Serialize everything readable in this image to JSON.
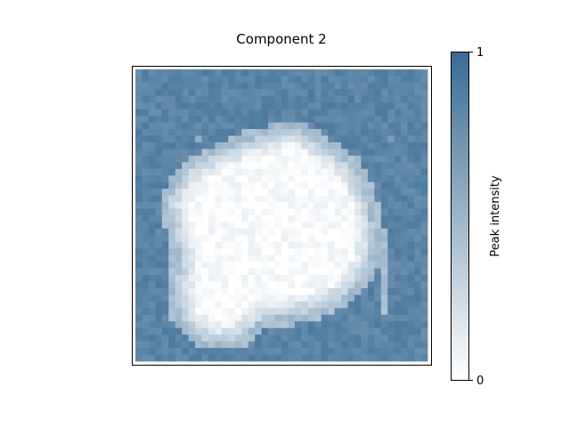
{
  "chart_data": {
    "type": "heatmap",
    "title": "Component 2",
    "xlabel": "",
    "ylabel": "",
    "grid": false,
    "colorbar": {
      "label": "Peak intensity",
      "min": 0,
      "max": 1,
      "ticks": [
        "0",
        "1"
      ],
      "color_low": "#ffffff",
      "color_high": "#3a6b93"
    },
    "grid_size": [
      44,
      44
    ],
    "background_level": 0.83,
    "region_level": 0.03,
    "region_outline": [
      [
        24,
        9
      ],
      [
        26,
        10
      ],
      [
        29,
        12
      ],
      [
        33,
        15
      ],
      [
        35,
        20
      ],
      [
        36,
        25
      ],
      [
        35,
        30
      ],
      [
        32,
        34
      ],
      [
        28,
        36
      ],
      [
        24,
        37
      ],
      [
        19,
        38
      ],
      [
        15,
        41
      ],
      [
        11,
        41
      ],
      [
        7,
        38
      ],
      [
        6,
        34
      ],
      [
        7,
        29
      ],
      [
        6,
        24
      ],
      [
        5,
        20
      ],
      [
        8,
        15
      ],
      [
        12,
        13
      ],
      [
        16,
        11
      ],
      [
        20,
        10
      ]
    ],
    "secondary_region_outline": [
      [
        37,
        24
      ],
      [
        38,
        24
      ],
      [
        38,
        37
      ],
      [
        37,
        37
      ]
    ],
    "secondary_region_level": 0.45,
    "bright_spots": [
      [
        38,
        10
      ],
      [
        9,
        10
      ]
    ],
    "bright_spot_level": 0.6
  }
}
